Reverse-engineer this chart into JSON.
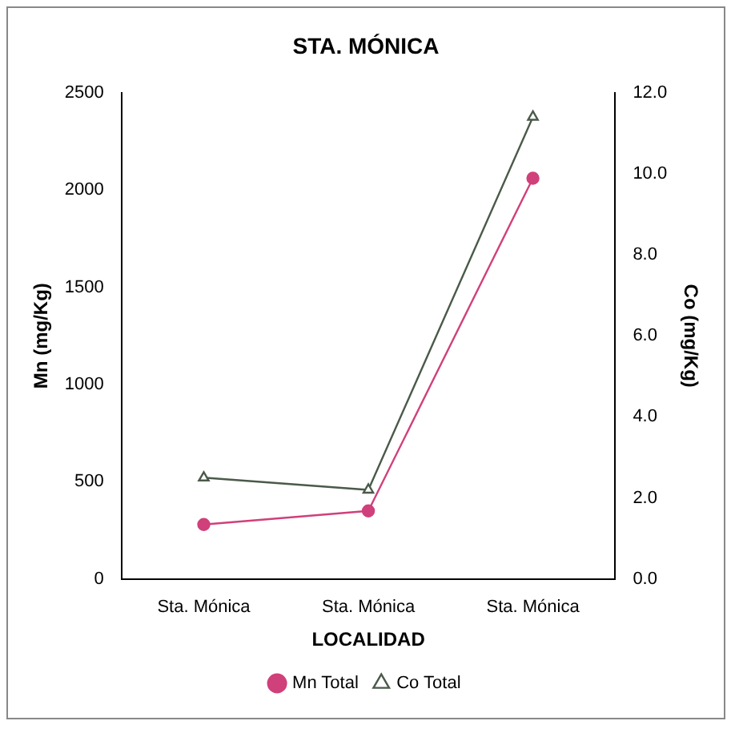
{
  "chart_data": {
    "type": "line",
    "title": "STA. MÓNICA",
    "xlabel": "LOCALIDAD",
    "ylabel": "Mn (mg/Kg)",
    "y2label": "Co (mg/Kg)",
    "categories": [
      "Sta. Mónica",
      "Sta. Mónica",
      "Sta. Mónica"
    ],
    "series": [
      {
        "name": "Mn Total",
        "color": "#d0407a",
        "values": [
          280,
          350,
          2060
        ],
        "marker": "circle"
      },
      {
        "name": "Co Total",
        "color": "#4a5a4a",
        "values": [
          2.5,
          2.2,
          11.4
        ],
        "axis": "y2",
        "marker": "triangle"
      }
    ],
    "ylim": [
      0,
      2500
    ],
    "yticks": [
      0,
      500,
      1000,
      1500,
      2000,
      2500
    ],
    "y2lim": [
      0,
      12
    ],
    "y2ticks": [
      {
        "value": 0,
        "label": "0.0"
      },
      {
        "value": 2,
        "label": "2.0"
      },
      {
        "value": 4,
        "label": "4.0"
      },
      {
        "value": 6,
        "label": "6.0"
      },
      {
        "value": 8,
        "label": "8.0"
      },
      {
        "value": 10,
        "label": "10.0"
      },
      {
        "value": 12,
        "label": "12.0"
      }
    ],
    "grid": false,
    "legend": "bottom",
    "line_style": "solid"
  }
}
